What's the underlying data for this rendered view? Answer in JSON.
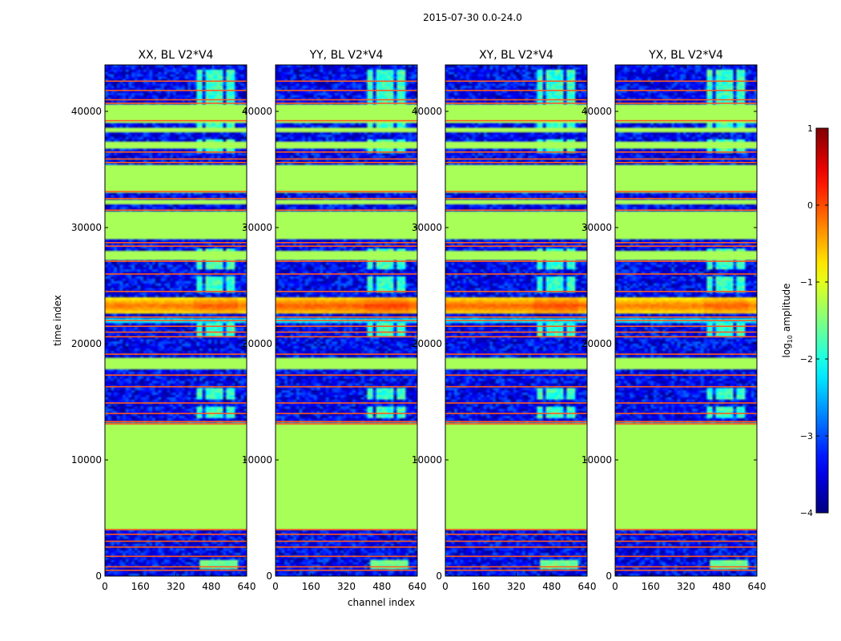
{
  "chart_data": {
    "type": "heatmap",
    "suptitle": "2015-07-30 0.0-24.0",
    "xlabel": "channel index",
    "ylabel": "time index",
    "xlim": [
      0,
      640
    ],
    "ylim": [
      0,
      44000
    ],
    "xticks": [
      0,
      160,
      320,
      480,
      640
    ],
    "yticks": [
      0,
      10000,
      20000,
      30000,
      40000
    ],
    "panels": [
      {
        "title": "XX, BL V2*V4",
        "core_peak": -0.08
      },
      {
        "title": "YY, BL V2*V4",
        "core_peak": 0.05
      },
      {
        "title": "XY, BL V2*V4",
        "core_peak": 0.0
      },
      {
        "title": "YX, BL V2*V4",
        "core_peak": -0.1
      }
    ],
    "colorbar": {
      "label": "log10 amplitude",
      "label_main": "log",
      "label_sub": "10",
      "label_rest": " amplitude",
      "range": [
        -4,
        1
      ],
      "ticks": [
        {
          "value": 1,
          "label": "1"
        },
        {
          "value": 0,
          "label": "0"
        },
        {
          "value": -1,
          "label": "−1"
        },
        {
          "value": -2,
          "label": "−2"
        },
        {
          "value": -3,
          "label": "−3"
        },
        {
          "value": -4,
          "label": "−4"
        }
      ]
    },
    "flagged_value": -1.3,
    "flagged_time_ranges": [
      [
        4000,
        13100
      ],
      [
        17700,
        18800
      ],
      [
        27300,
        28000
      ],
      [
        29000,
        31400
      ],
      [
        32000,
        32400
      ],
      [
        33100,
        35400
      ],
      [
        36800,
        37300
      ],
      [
        38200,
        38500
      ],
      [
        39100,
        40600
      ]
    ],
    "flag_lines_time": [
      500,
      800,
      1700,
      2500,
      3000,
      3600,
      4000,
      13100,
      13300,
      14000,
      14900,
      16300,
      17300,
      19100,
      20600,
      21000,
      21500,
      22000,
      22300,
      24500,
      26000,
      27100,
      28400,
      28700,
      31500,
      32500,
      33100,
      35600,
      35900,
      36500,
      39200,
      40700,
      41000,
      41800,
      42600
    ],
    "rfi_channel_blocks": [
      [
        410,
        445
      ],
      [
        455,
        490
      ],
      [
        500,
        535
      ],
      [
        545,
        580
      ]
    ],
    "rfi_time_ranges": [
      [
        13500,
        14600
      ],
      [
        15200,
        16200
      ],
      [
        20700,
        22000
      ],
      [
        24500,
        25800
      ],
      [
        26500,
        28200
      ],
      [
        36400,
        37500
      ],
      [
        38600,
        39200
      ],
      [
        40700,
        43600
      ]
    ]
  }
}
